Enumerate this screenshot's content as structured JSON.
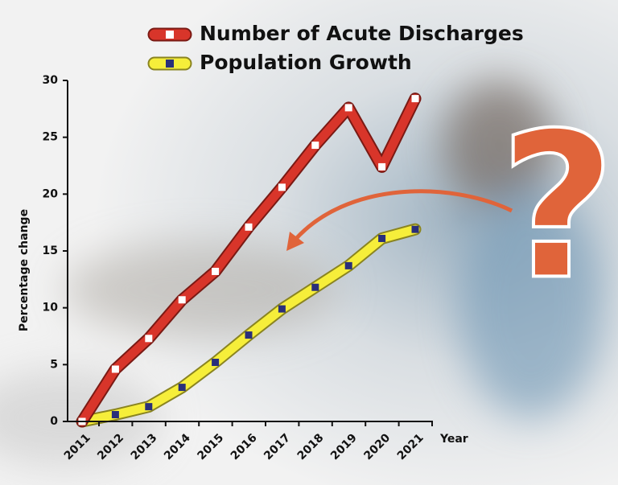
{
  "chart_data": {
    "type": "line",
    "annotation": "?",
    "y_label": "Percentage change",
    "x_label": "Year",
    "categories": [
      "2011",
      "2012",
      "2013",
      "2014",
      "2015",
      "2016",
      "2017",
      "2018",
      "2019",
      "2020",
      "2021"
    ],
    "series": [
      {
        "name": "Number of Acute Discharges",
        "color": "#d8352a",
        "marker_color": "#ffffff",
        "values": [
          0,
          4.6,
          7.3,
          10.7,
          13.2,
          17.1,
          20.6,
          24.3,
          27.6,
          22.4,
          28.4
        ]
      },
      {
        "name": "Population Growth",
        "color": "#f6ee3a",
        "marker_color": "#2a2f7a",
        "values": [
          0,
          0.6,
          1.3,
          3.0,
          5.2,
          7.6,
          9.9,
          11.8,
          13.7,
          16.1,
          16.9
        ]
      }
    ],
    "ylim": [
      0,
      30
    ],
    "yticks": [
      0,
      5,
      10,
      15,
      20,
      25,
      30
    ]
  }
}
